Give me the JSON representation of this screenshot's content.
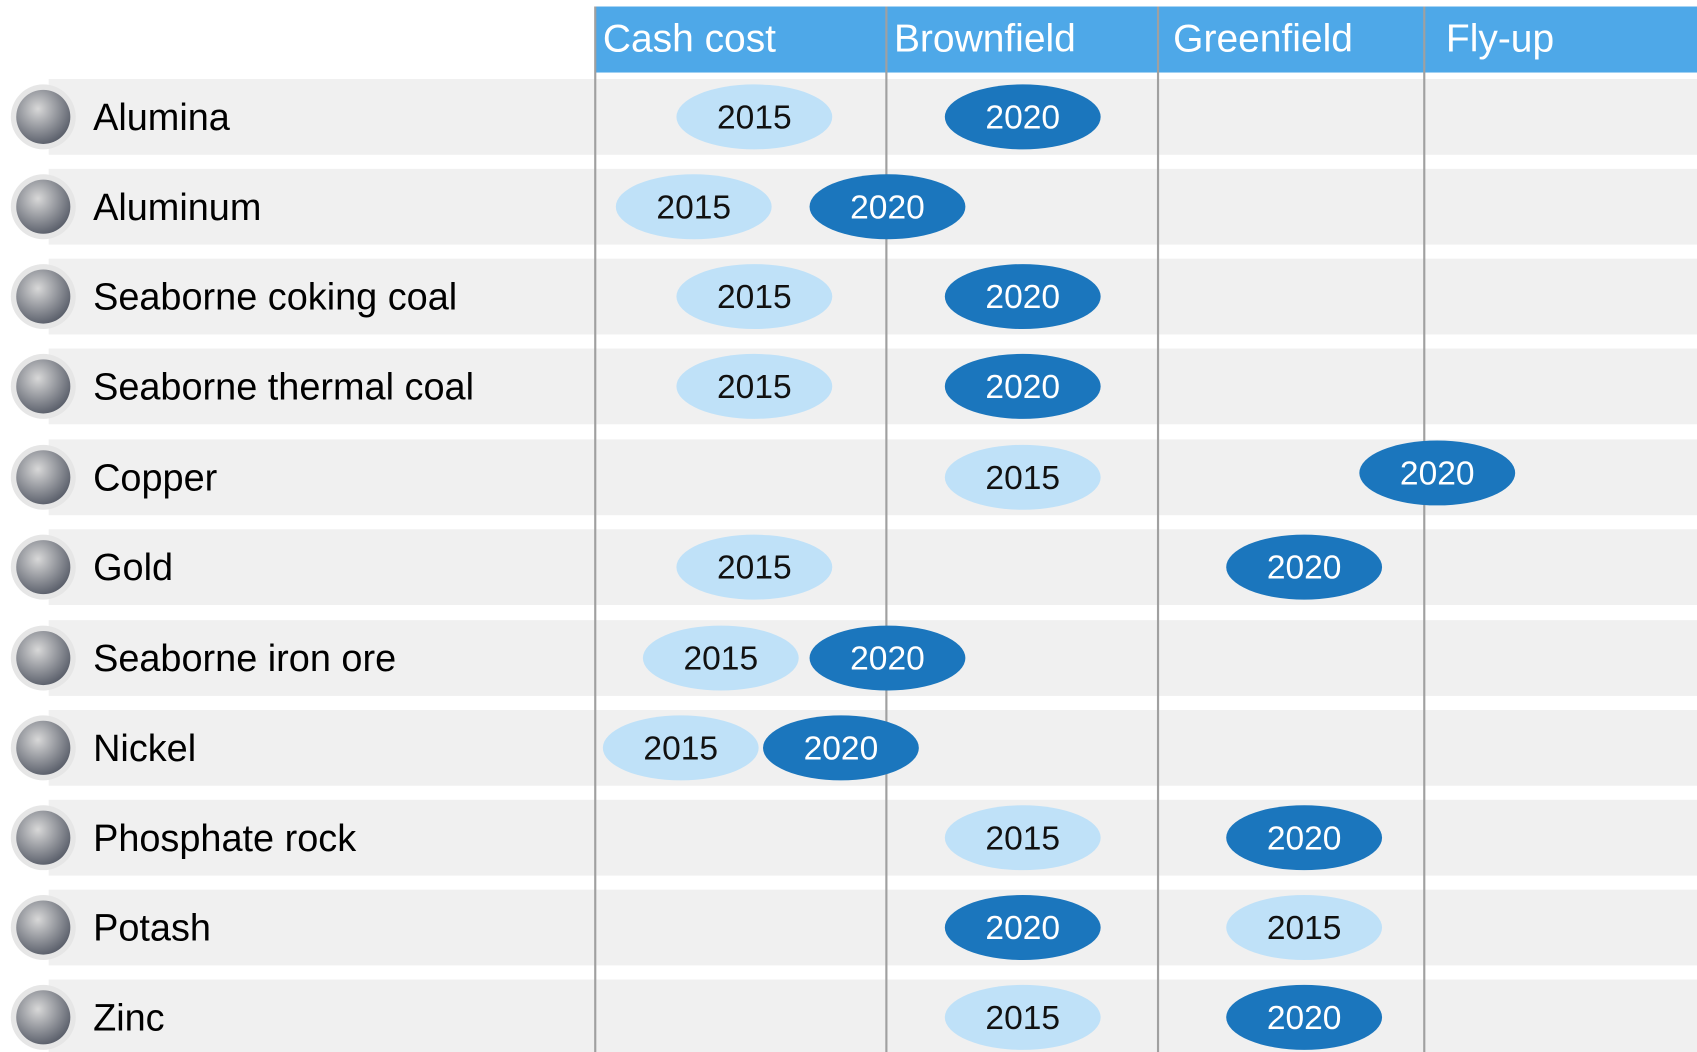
{
  "header": {
    "columns": [
      "Cash cost",
      "Brownfield",
      "Greenfield",
      "Fly-up"
    ]
  },
  "rows": [
    {
      "label": "Alumina",
      "markers": [
        "2015",
        "2020"
      ]
    },
    {
      "label": "Aluminum",
      "markers": [
        "2015",
        "2020"
      ]
    },
    {
      "label": "Seaborne coking coal",
      "markers": [
        "2015",
        "2020"
      ]
    },
    {
      "label": "Seaborne thermal coal",
      "markers": [
        "2015",
        "2020"
      ]
    },
    {
      "label": "Copper",
      "markers": [
        "2015",
        "2020"
      ]
    },
    {
      "label": "Gold",
      "markers": [
        "2015",
        "2020"
      ]
    },
    {
      "label": "Seaborne iron ore",
      "markers": [
        "2015",
        "2020"
      ]
    },
    {
      "label": "Nickel",
      "markers": [
        "2015",
        "2020"
      ]
    },
    {
      "label": "Phosphate rock",
      "markers": [
        "2015",
        "2020"
      ]
    },
    {
      "label": "Potash",
      "markers": [
        "2020",
        "2015"
      ]
    },
    {
      "label": "Zinc",
      "markers": [
        "2015",
        "2020"
      ]
    }
  ]
}
